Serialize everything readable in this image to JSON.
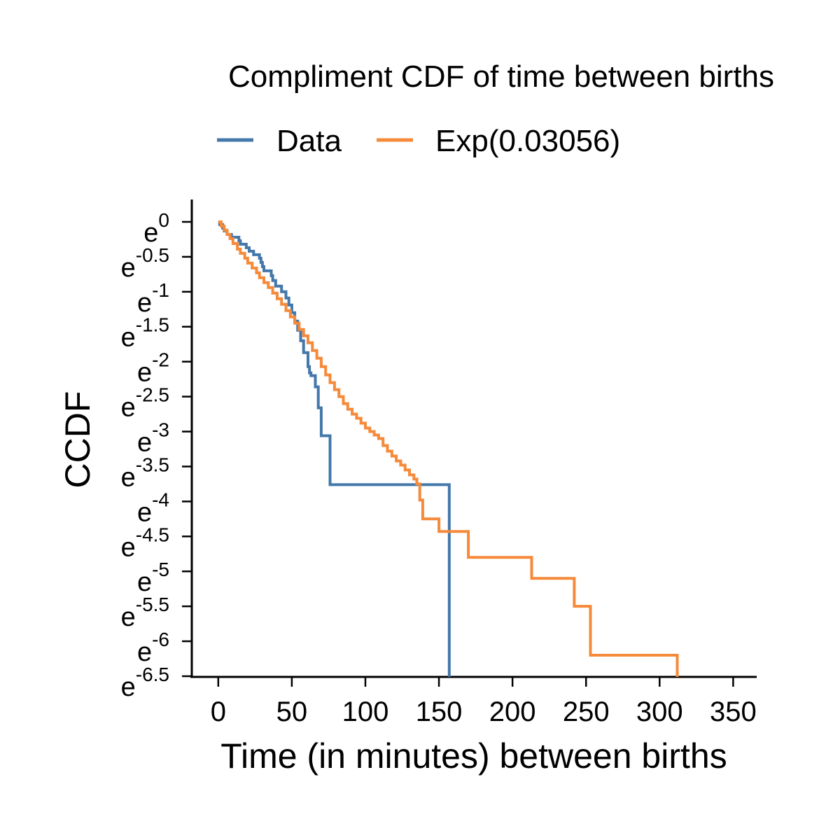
{
  "chart_data": {
    "type": "line",
    "title": "Compliment CDF of time between births",
    "xlabel": "Time (in minutes) between births",
    "ylabel": "CCDF",
    "y_scale": "log (base e)",
    "xlim": [
      -18,
      366
    ],
    "ylim": [
      -6.51,
      0.32
    ],
    "xticks": [
      0,
      50,
      100,
      150,
      200,
      250,
      300,
      350
    ],
    "yticks": [
      0,
      -0.5,
      -1,
      -1.5,
      -2,
      -2.5,
      -3,
      -3.5,
      -4,
      -4.5,
      -5,
      -5.5,
      -6,
      -6.5
    ],
    "ytick_base": "e",
    "ytick_exponents": [
      "0",
      "-0.5",
      "-1",
      "-1.5",
      "-2",
      "-2.5",
      "-3",
      "-3.5",
      "-4",
      "-4.5",
      "-5",
      "-5.5",
      "-6",
      "-6.5"
    ],
    "legend": {
      "placement": "top",
      "entries": [
        "Data",
        "Exp(0.03056)"
      ]
    },
    "grid": false,
    "series": [
      {
        "name": "Data",
        "color": "#4477aa",
        "step": true,
        "x": [
          0,
          1,
          3,
          4,
          6,
          9,
          14,
          15,
          19,
          21,
          24,
          28,
          29,
          30,
          31,
          36,
          37,
          39,
          43,
          46,
          48,
          50,
          52,
          54,
          56,
          58,
          61,
          62,
          63,
          66,
          68,
          70,
          76,
          78,
          85,
          87,
          155,
          157,
          157
        ],
        "y": [
          0,
          -0.04,
          -0.09,
          -0.13,
          -0.18,
          -0.22,
          -0.27,
          -0.32,
          -0.37,
          -0.42,
          -0.47,
          -0.52,
          -0.58,
          -0.64,
          -0.7,
          -0.77,
          -0.84,
          -0.92,
          -1.0,
          -1.09,
          -1.19,
          -1.3,
          -1.42,
          -1.55,
          -1.7,
          -1.87,
          -2.07,
          -2.16,
          -2.2,
          -2.36,
          -2.66,
          -3.06,
          -3.76,
          -3.76,
          -3.76,
          -3.76,
          -3.76,
          -6.51,
          -6.51
        ]
      },
      {
        "name": "Exp(0.03056)",
        "color": "#f58a3a",
        "step": true,
        "x": [
          0,
          2,
          4,
          6,
          8,
          10,
          13,
          15,
          18,
          20,
          23,
          26,
          28,
          31,
          34,
          37,
          40,
          43,
          46,
          49,
          52,
          55,
          58,
          61,
          64,
          67,
          70,
          73,
          76,
          79,
          82,
          85,
          88,
          91,
          94,
          97,
          100,
          103,
          106,
          109,
          112,
          115,
          118,
          121,
          124,
          127,
          130,
          133,
          135,
          137,
          139,
          150,
          168,
          170,
          211,
          213,
          240,
          242,
          251,
          253,
          311,
          312
        ],
        "y": [
          0,
          -0.06,
          -0.12,
          -0.18,
          -0.24,
          -0.31,
          -0.39,
          -0.45,
          -0.52,
          -0.59,
          -0.66,
          -0.73,
          -0.8,
          -0.87,
          -0.94,
          -1.02,
          -1.1,
          -1.18,
          -1.27,
          -1.36,
          -1.45,
          -1.54,
          -1.63,
          -1.73,
          -1.84,
          -1.95,
          -2.07,
          -2.19,
          -2.3,
          -2.4,
          -2.5,
          -2.6,
          -2.68,
          -2.75,
          -2.81,
          -2.88,
          -2.95,
          -3.0,
          -3.05,
          -3.1,
          -3.2,
          -3.28,
          -3.35,
          -3.42,
          -3.48,
          -3.55,
          -3.62,
          -3.68,
          -3.75,
          -3.98,
          -4.25,
          -4.43,
          -4.43,
          -4.8,
          -4.8,
          -5.1,
          -5.1,
          -5.5,
          -5.5,
          -6.2,
          -6.2,
          -6.51
        ]
      }
    ]
  }
}
